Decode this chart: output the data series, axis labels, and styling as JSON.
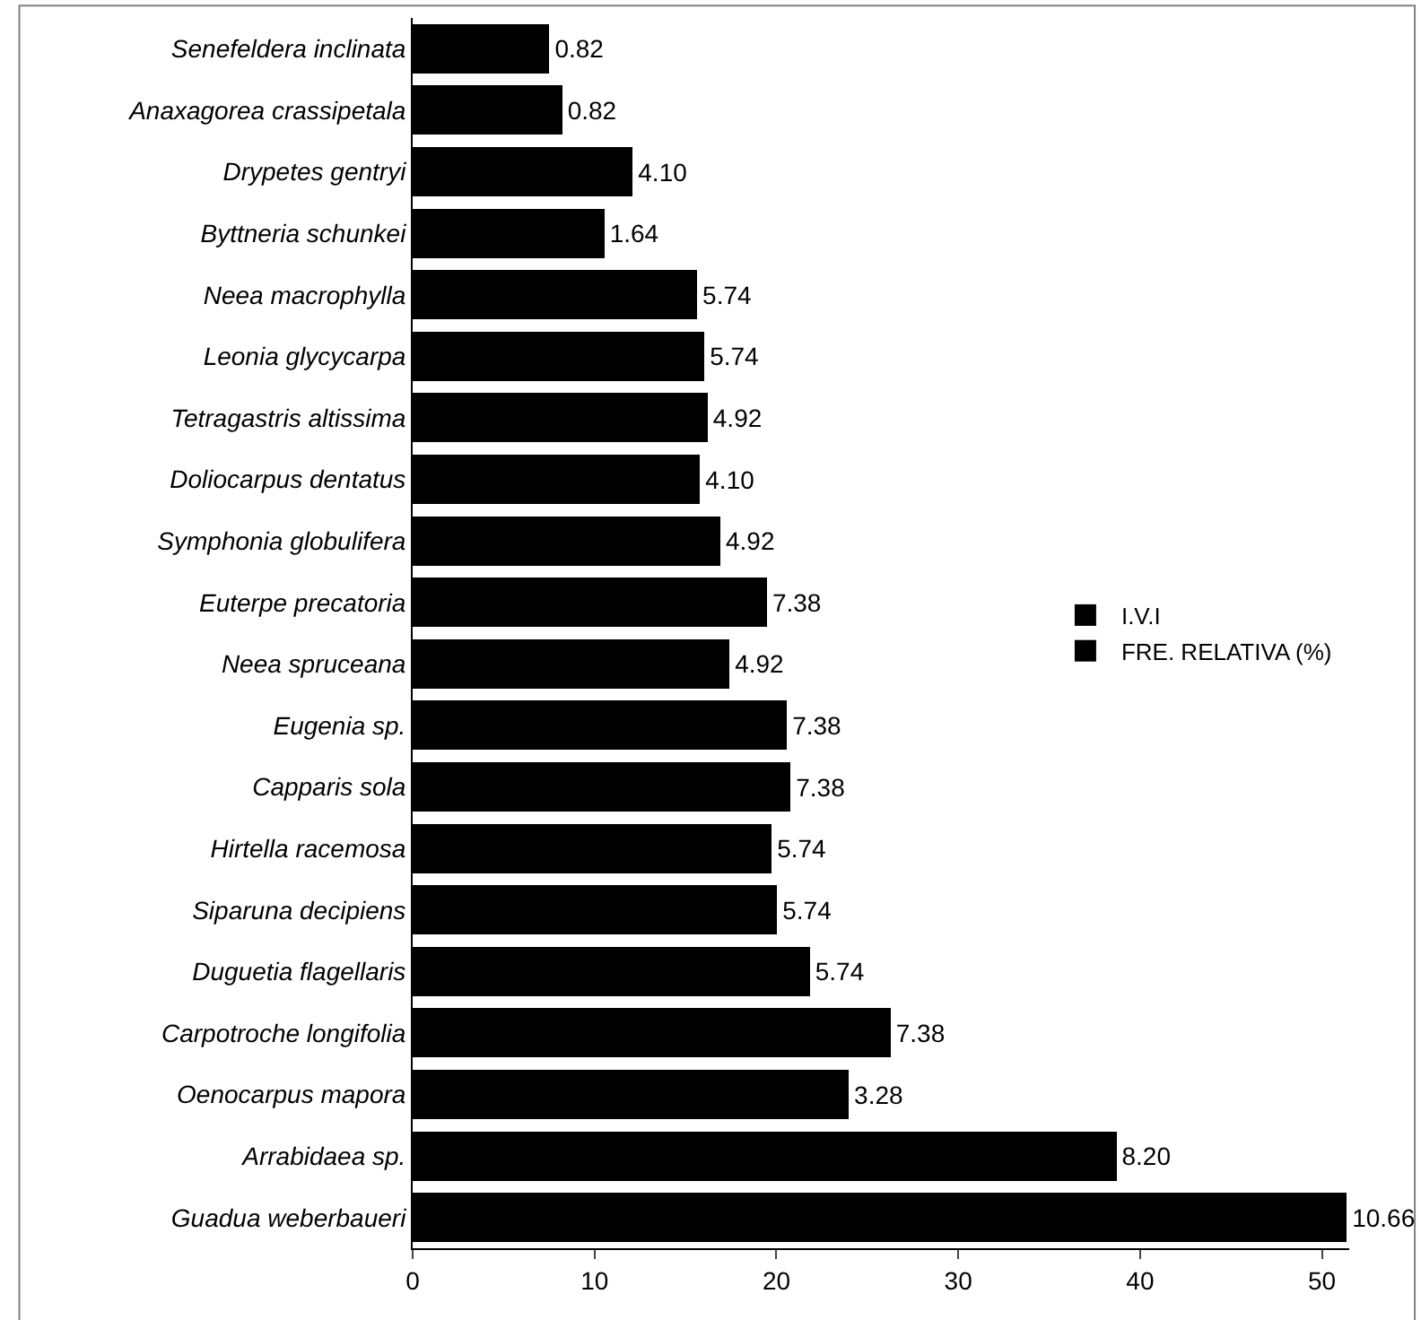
{
  "chart_data": {
    "type": "bar",
    "orientation": "horizontal",
    "stacked": true,
    "categories": [
      "Senefeldera inclinata",
      "Anaxagorea crassipetala",
      "Drypetes gentryi",
      "Byttneria schunkei",
      "Neea macrophylla",
      "Leonia glycycarpa",
      "Tetragastris altissima",
      "Doliocarpus dentatus",
      "Symphonia globulifera",
      "Euterpe precatoria",
      "Neea spruceana",
      "Eugenia sp.",
      "Capparis sola",
      "Hirtella racemosa",
      "Siparuna decipiens",
      "Duguetia flagellaris",
      "Carpotroche longifolia",
      "Oenocarpus mapora",
      "Arrabidaea sp.",
      "Guadua weberbaueri"
    ],
    "series": [
      {
        "name": "I.V.I",
        "color": "#000000",
        "values": [
          6.7,
          7.4,
          8.0,
          8.9,
          9.9,
          10.3,
          11.3,
          11.7,
          12.0,
          12.1,
          12.5,
          13.2,
          13.4,
          14.0,
          14.3,
          16.1,
          18.9,
          20.7,
          30.5,
          40.7
        ]
      },
      {
        "name": "FRE. RELATIVA (%)",
        "color": "#000000",
        "values": [
          0.82,
          0.82,
          4.1,
          1.64,
          5.74,
          5.74,
          4.92,
          4.1,
          4.92,
          7.38,
          4.92,
          7.38,
          7.38,
          5.74,
          5.74,
          5.74,
          7.38,
          3.28,
          8.2,
          10.66
        ],
        "value_labels": [
          "0.82",
          "0.82",
          "4.10",
          "1.64",
          "5.74",
          "5.74",
          "4.92",
          "4.10",
          "4.92",
          "7.38",
          "4.92",
          "7.38",
          "7.38",
          "5.74",
          "5.74",
          "5.74",
          "7.38",
          "3.28",
          "8.20",
          "10.66"
        ]
      }
    ],
    "xlim": [
      0,
      51.5
    ],
    "xticks": [
      0,
      10,
      20,
      30,
      40,
      50
    ],
    "legend": "right"
  }
}
